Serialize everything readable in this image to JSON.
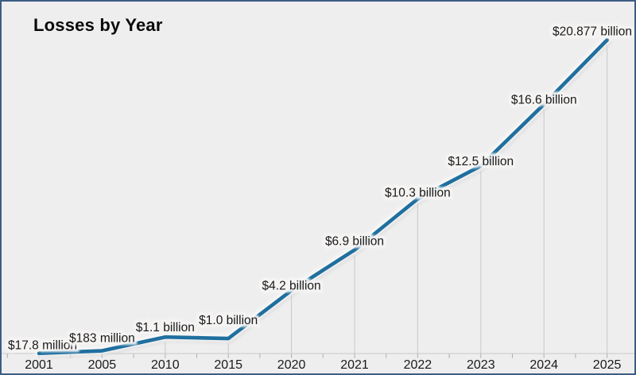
{
  "window": {
    "background_color": "#efeeef",
    "border_color": "#3c5e85"
  },
  "chart_data": {
    "type": "line",
    "title": "Losses by Year",
    "categories": [
      "2001",
      "2005",
      "2010",
      "2015",
      "2020",
      "2021",
      "2022",
      "2023",
      "2024",
      "2025"
    ],
    "series": [
      {
        "name": "Losses",
        "values_billions_usd": [
          0.0178,
          0.183,
          1.1,
          1.0,
          4.2,
          6.9,
          10.3,
          12.5,
          16.6,
          20.877
        ]
      }
    ],
    "point_labels": [
      "$17.8 million",
      "$183 million",
      "$1.1 billion",
      "$1.0 billion",
      "$4.2 billion",
      "$6.9 billion",
      "$10.3 billion",
      "$12.5 billion",
      "$16.6 billion",
      "$20.877 billion"
    ],
    "xlabel": "",
    "ylabel": "",
    "ylim": [
      0,
      20.877
    ],
    "legend": "none",
    "grid": "vertical drop lines from each data point to x-axis; minor ticks at category midpoints",
    "line_color": "#1f6f9f",
    "label_color": "#1a1a1a",
    "axis_line_color": "#c8c8c8",
    "tick_color": "#ababab",
    "label_dy_hints": [
      -5,
      -11,
      -7,
      -18,
      -1,
      -6,
      -3,
      -1,
      -1,
      -6
    ]
  }
}
